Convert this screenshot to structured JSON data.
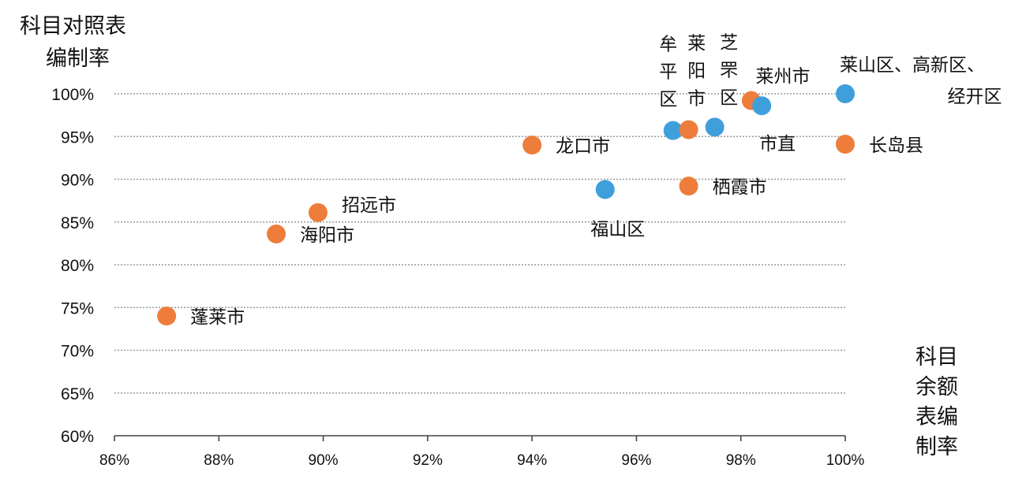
{
  "chart_data": {
    "type": "scatter",
    "ylabel": [
      "科目对照表",
      "编制率"
    ],
    "xlabel": [
      "科目",
      "余额",
      "表编",
      "制率"
    ],
    "xlim": [
      0.86,
      1.0
    ],
    "ylim": [
      0.6,
      1.0
    ],
    "xticks": [
      0.86,
      0.88,
      0.9,
      0.92,
      0.94,
      0.96,
      0.98,
      1.0
    ],
    "yticks": [
      0.6,
      0.65,
      0.7,
      0.75,
      0.8,
      0.85,
      0.9,
      0.95,
      1.0
    ],
    "xtick_labels": [
      "86%",
      "88%",
      "90%",
      "92%",
      "94%",
      "96%",
      "98%",
      "100%"
    ],
    "ytick_labels": [
      "60%",
      "65%",
      "70%",
      "75%",
      "80%",
      "85%",
      "90%",
      "95%",
      "100%"
    ],
    "grid": true,
    "colors": {
      "orange": "#EE7D3B",
      "blue": "#3E9FDB"
    },
    "points": [
      {
        "x": 0.87,
        "y": 0.74,
        "color": "orange",
        "label": [
          "蓬莱市"
        ]
      },
      {
        "x": 0.891,
        "y": 0.836,
        "color": "orange",
        "label": [
          "海阳市"
        ]
      },
      {
        "x": 0.899,
        "y": 0.861,
        "color": "orange",
        "label": [
          "招远市"
        ]
      },
      {
        "x": 0.94,
        "y": 0.94,
        "color": "orange",
        "label": [
          "龙口市"
        ]
      },
      {
        "x": 0.954,
        "y": 0.888,
        "color": "blue",
        "label": [
          "福山区"
        ]
      },
      {
        "x": 0.967,
        "y": 0.957,
        "color": "blue",
        "label": [
          "牟",
          "平",
          "区"
        ]
      },
      {
        "x": 0.97,
        "y": 0.958,
        "color": "orange",
        "label": [
          "莱",
          "阳",
          "市"
        ]
      },
      {
        "x": 0.97,
        "y": 0.892,
        "color": "orange",
        "label": [
          "栖霞市"
        ]
      },
      {
        "x": 0.975,
        "y": 0.961,
        "color": "blue",
        "label": [
          "芝",
          "罘",
          "区"
        ]
      },
      {
        "x": 0.982,
        "y": 0.992,
        "color": "orange",
        "label": [
          "莱州市"
        ]
      },
      {
        "x": 0.984,
        "y": 0.986,
        "color": "blue",
        "label": [
          "市直"
        ]
      },
      {
        "x": 1.0,
        "y": 1.0,
        "color": "blue",
        "label": [
          "莱山区、高新区、",
          "经开区"
        ]
      },
      {
        "x": 1.0,
        "y": 0.941,
        "color": "orange",
        "label": [
          "长岛县"
        ]
      }
    ]
  }
}
